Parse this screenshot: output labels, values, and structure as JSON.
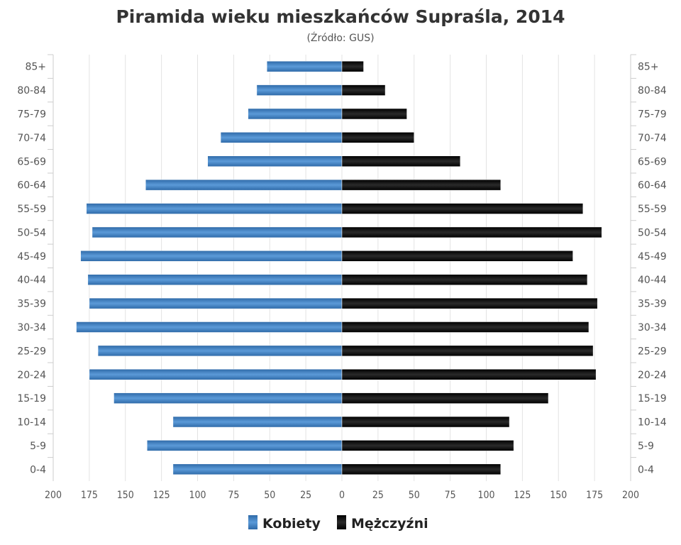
{
  "chart_data": {
    "type": "bar",
    "orientation": "horizontal-population-pyramid",
    "title": "Piramida wieku mieszkańców Supraśla, 2014",
    "subtitle": "(Źródło: GUS)",
    "categories": [
      "85+",
      "80-84",
      "75-79",
      "70-74",
      "65-69",
      "60-64",
      "55-59",
      "50-54",
      "45-49",
      "40-44",
      "35-39",
      "30-34",
      "25-29",
      "20-24",
      "15-19",
      "10-14",
      "5-9",
      "0-4"
    ],
    "series": [
      {
        "name": "Kobiety",
        "side": "left",
        "color": "#3f7fc0",
        "values": [
          52,
          59,
          65,
          84,
          93,
          136,
          177,
          173,
          181,
          176,
          175,
          184,
          169,
          175,
          158,
          117,
          135,
          117
        ]
      },
      {
        "name": "Mężczyźni",
        "side": "right",
        "color": "#111111",
        "values": [
          15,
          30,
          45,
          50,
          82,
          110,
          167,
          180,
          160,
          170,
          177,
          171,
          174,
          176,
          143,
          116,
          119,
          110
        ]
      }
    ],
    "xlim": [
      -200,
      200
    ],
    "xticks": [
      "200",
      "175",
      "150",
      "125",
      "100",
      "75",
      "50",
      "25",
      "0",
      "25",
      "50",
      "75",
      "100",
      "125",
      "150",
      "175",
      "200"
    ],
    "grid": true,
    "legend_position": "bottom"
  }
}
